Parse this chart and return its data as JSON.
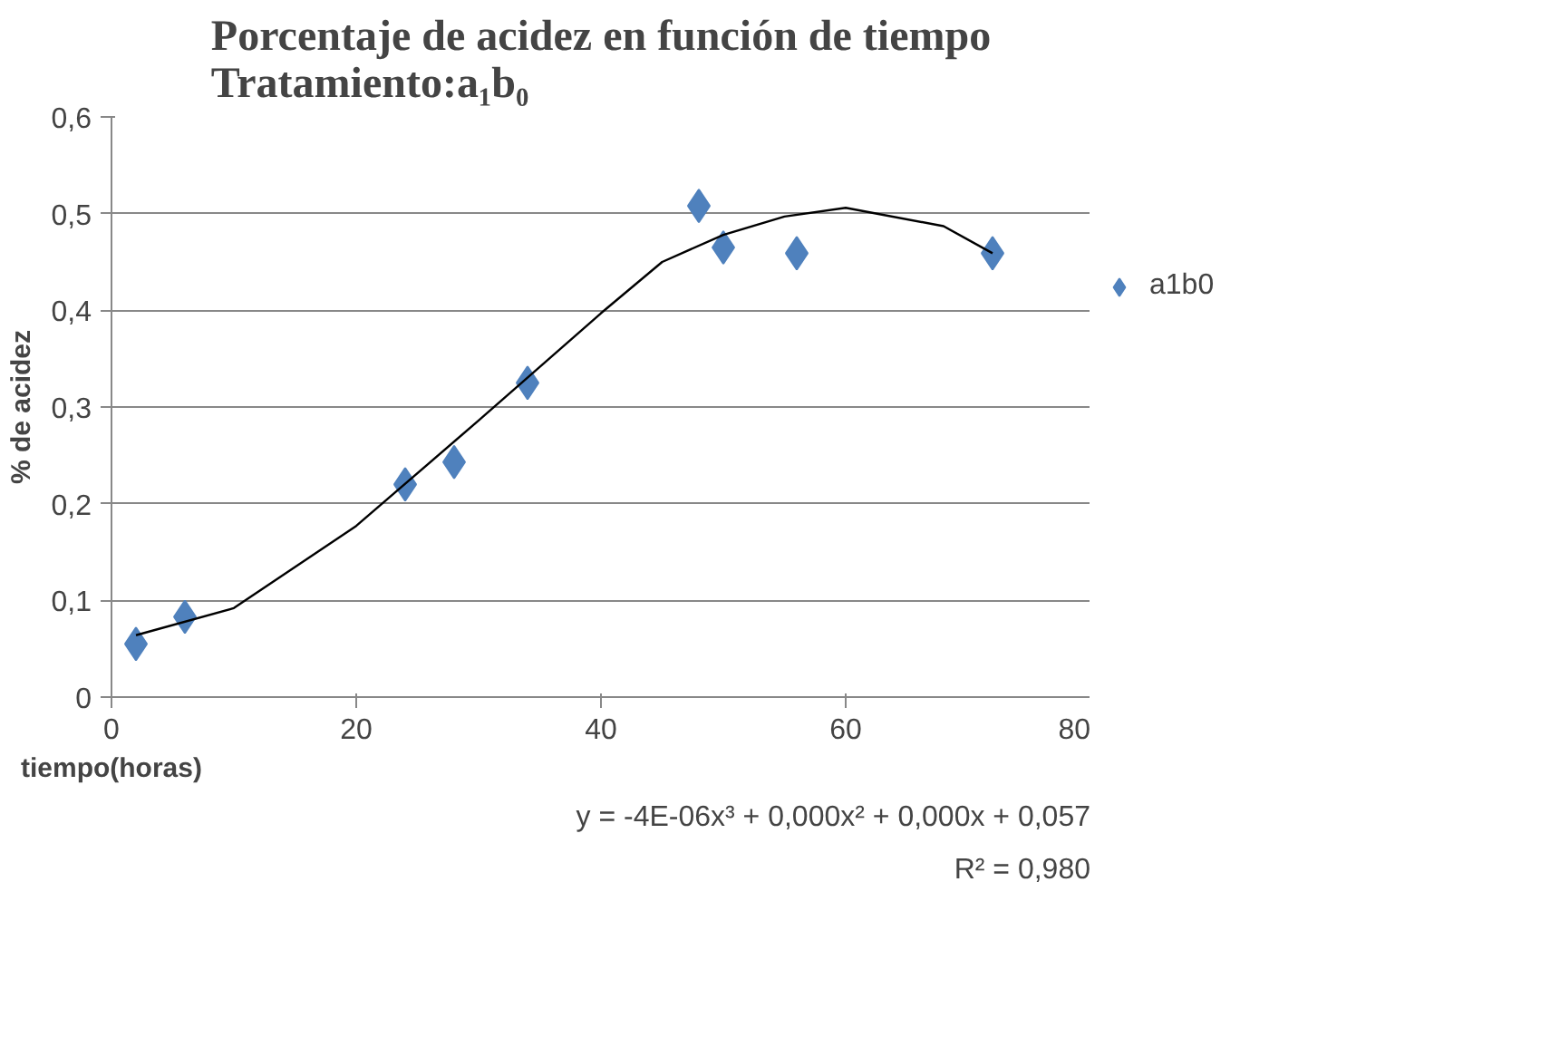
{
  "chart_data": {
    "type": "scatter",
    "title": "Porcentaje de acidez en función de tiempo\nTratamiento:a₁b₀",
    "xlabel": "tiempo(horas)",
    "ylabel": "% de acidez",
    "series": [
      {
        "name": "a1b0",
        "color": "#4f81bd",
        "marker": "diamond",
        "x": [
          2,
          6,
          24,
          28,
          34,
          48,
          50,
          56,
          72
        ],
        "values": [
          0.055,
          0.083,
          0.22,
          0.243,
          0.325,
          0.508,
          0.465,
          0.459,
          0.459
        ]
      },
      {
        "type": "line",
        "color": "#000000",
        "marker": "none",
        "x": [
          2,
          10,
          20,
          30,
          40,
          45,
          50,
          55,
          60,
          68,
          72
        ],
        "values": [
          0.064,
          0.092,
          0.177,
          0.286,
          0.397,
          0.45,
          0.478,
          0.497,
          0.506,
          0.487,
          0.459
        ]
      }
    ],
    "xlim": [
      0,
      80
    ],
    "xticks": [
      0,
      20,
      40,
      60,
      80
    ],
    "ylim": [
      0,
      0.6
    ],
    "yticks": [
      0,
      {
        "value": 0.1,
        "label": "0,1"
      },
      {
        "value": 0.2,
        "label": "0,2"
      },
      {
        "value": 0.3,
        "label": "0,3"
      },
      {
        "value": 0.4,
        "label": "0,4"
      },
      {
        "value": 0.5,
        "label": "0,5"
      },
      {
        "value": 0.6,
        "label": "0,6"
      }
    ],
    "grid": "y",
    "legend": "right",
    "annotations": [
      "y = -4E-06x³ + 0,000x² + 0,000x + 0,057",
      "R² = 0,980"
    ]
  }
}
